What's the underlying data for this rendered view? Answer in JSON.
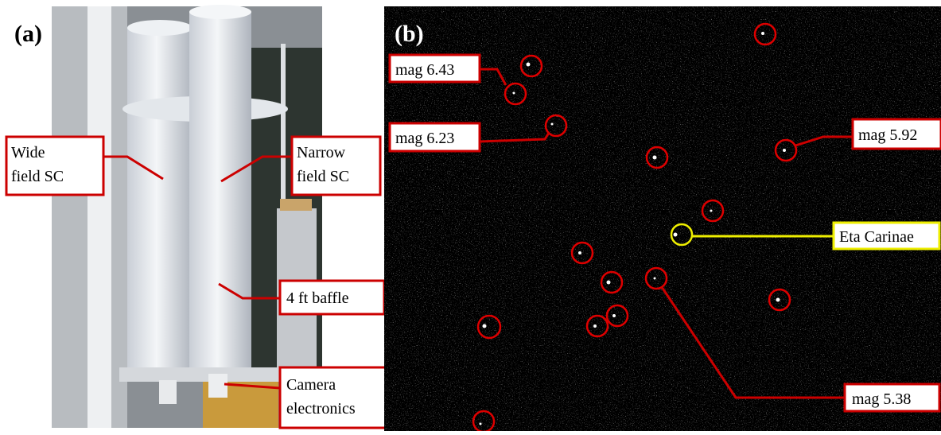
{
  "panels": [
    {
      "label": "(a)",
      "annotations": [
        {
          "lines": [
            "Wide",
            "field SC"
          ]
        },
        {
          "lines": [
            "Narrow",
            "field SC"
          ]
        },
        {
          "lines": [
            "4 ft baffle"
          ]
        },
        {
          "lines": [
            "Camera",
            "electronics"
          ]
        }
      ]
    },
    {
      "label": "(b)",
      "annotations": [
        {
          "lines": [
            "mag 6.43"
          ]
        },
        {
          "lines": [
            "mag 6.23"
          ]
        },
        {
          "lines": [
            "mag 5.92"
          ]
        },
        {
          "lines": [
            "Eta Carinae"
          ]
        },
        {
          "lines": [
            "mag 5.38"
          ]
        }
      ]
    }
  ]
}
